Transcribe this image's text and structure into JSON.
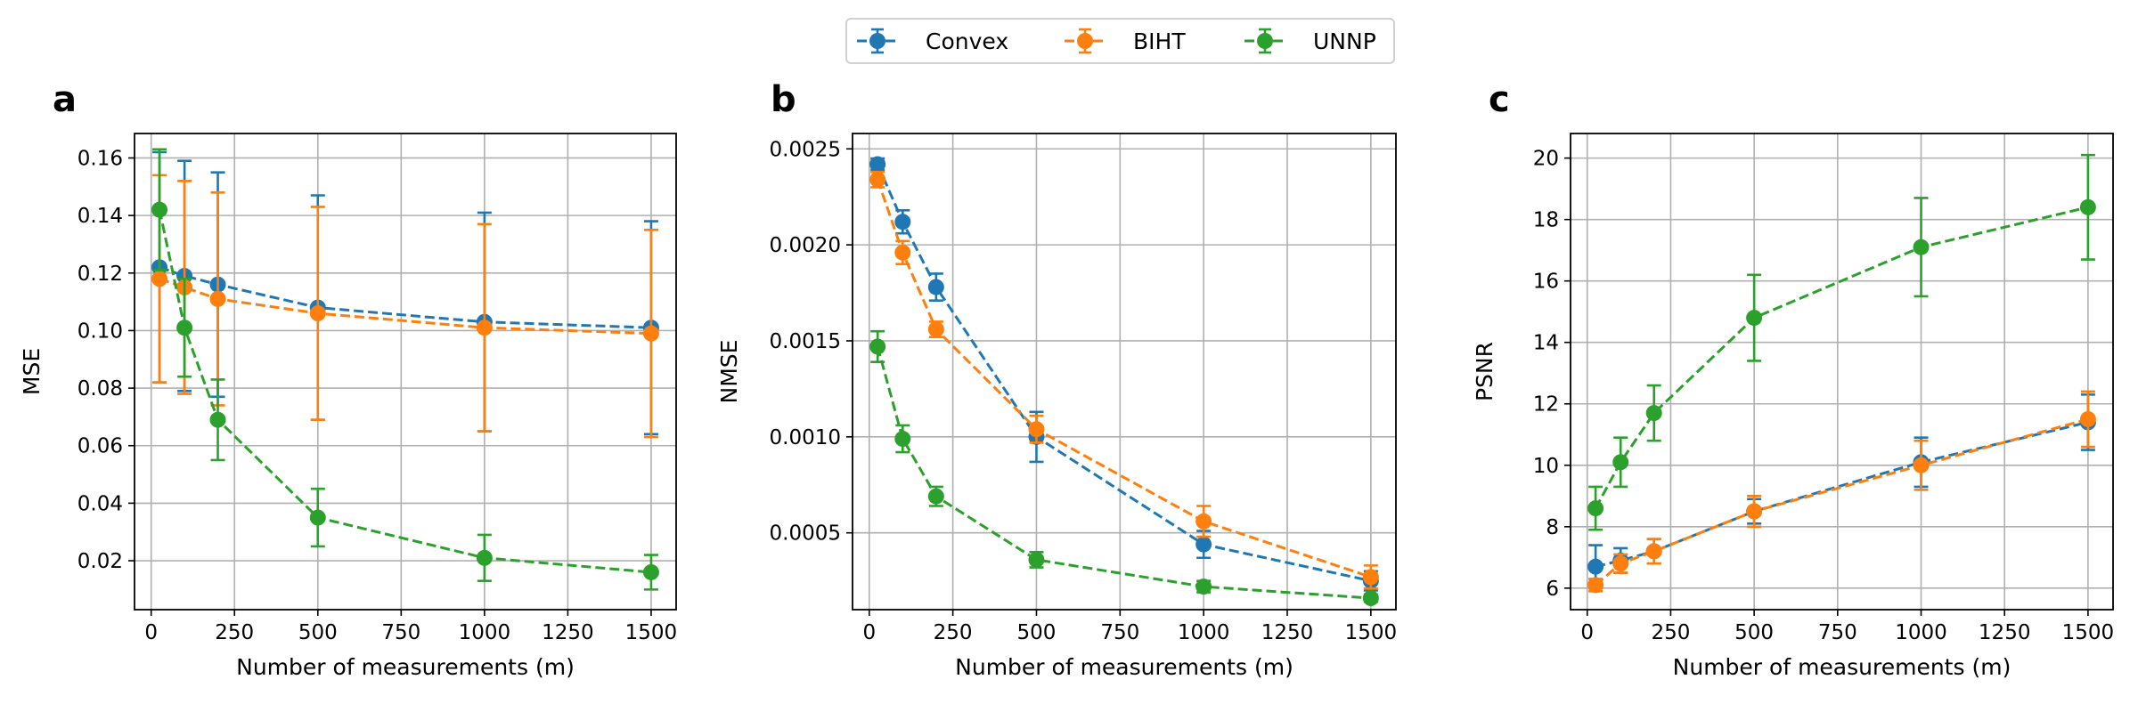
{
  "legend": {
    "entries": [
      {
        "label": "Convex",
        "color": "#1f77b4"
      },
      {
        "label": "BIHT",
        "color": "#ff7f0e"
      },
      {
        "label": "UNNP",
        "color": "#2ca02c"
      }
    ],
    "placement": "top-center"
  },
  "chart_data": [
    {
      "type": "line",
      "panel_label": "a",
      "xlabel": "Number of measurements (m)",
      "ylabel": "MSE",
      "grid": true,
      "x": [
        25,
        100,
        200,
        500,
        1000,
        1500
      ],
      "xlim": [
        -50,
        1575
      ],
      "ylim": [
        0.003,
        0.1685
      ],
      "xticks": [
        0,
        250,
        500,
        750,
        1000,
        1250,
        1500
      ],
      "yticks": [
        0.02,
        0.04,
        0.06,
        0.08,
        0.1,
        0.12,
        0.14,
        0.16
      ],
      "ytick_decimals": 2,
      "series": [
        {
          "name": "Convex",
          "color": "#1f77b4",
          "values": [
            0.122,
            0.119,
            0.116,
            0.108,
            0.103,
            0.101
          ],
          "errors": [
            0.04,
            0.04,
            0.039,
            0.039,
            0.038,
            0.037
          ]
        },
        {
          "name": "BIHT",
          "color": "#ff7f0e",
          "values": [
            0.118,
            0.115,
            0.111,
            0.106,
            0.101,
            0.099
          ],
          "errors": [
            0.036,
            0.037,
            0.037,
            0.037,
            0.036,
            0.036
          ]
        },
        {
          "name": "UNNP",
          "color": "#2ca02c",
          "values": [
            0.142,
            0.101,
            0.069,
            0.035,
            0.021,
            0.016
          ],
          "errors": [
            0.021,
            0.017,
            0.014,
            0.01,
            0.008,
            0.006
          ]
        }
      ]
    },
    {
      "type": "line",
      "panel_label": "b",
      "xlabel": "Number of measurements (m)",
      "ylabel": "NMSE",
      "grid": true,
      "x": [
        25,
        100,
        200,
        500,
        1000,
        1500
      ],
      "xlim": [
        -50,
        1575
      ],
      "ylim": [
        0.0001,
        0.00258
      ],
      "xticks": [
        0,
        250,
        500,
        750,
        1000,
        1250,
        1500
      ],
      "yticks": [
        0.0005,
        0.001,
        0.0015,
        0.002,
        0.0025
      ],
      "ytick_decimals": 4,
      "series": [
        {
          "name": "Convex",
          "color": "#1f77b4",
          "values": [
            0.00242,
            0.00212,
            0.00178,
            0.001,
            0.00044,
            0.00025
          ],
          "errors": [
            3e-05,
            6e-05,
            7e-05,
            0.00013,
            7e-05,
            5e-05
          ]
        },
        {
          "name": "BIHT",
          "color": "#ff7f0e",
          "values": [
            0.00234,
            0.00196,
            0.00156,
            0.00104,
            0.00056,
            0.00027
          ],
          "errors": [
            4e-05,
            6e-05,
            4e-05,
            7e-05,
            8e-05,
            6e-05
          ]
        },
        {
          "name": "UNNP",
          "color": "#2ca02c",
          "values": [
            0.00147,
            0.00099,
            0.00069,
            0.00036,
            0.00022,
            0.00016
          ],
          "errors": [
            8e-05,
            7e-05,
            5e-05,
            4e-05,
            3e-05,
            2e-05
          ]
        }
      ]
    },
    {
      "type": "line",
      "panel_label": "c",
      "xlabel": "Number of measurements (m)",
      "ylabel": "PSNR",
      "grid": true,
      "x": [
        25,
        100,
        200,
        500,
        1000,
        1500
      ],
      "xlim": [
        -50,
        1575
      ],
      "ylim": [
        5.3,
        20.8
      ],
      "xticks": [
        0,
        250,
        500,
        750,
        1000,
        1250,
        1500
      ],
      "yticks": [
        6,
        8,
        10,
        12,
        14,
        16,
        18,
        20
      ],
      "ytick_decimals": 0,
      "series": [
        {
          "name": "Convex",
          "color": "#1f77b4",
          "values": [
            6.7,
            6.9,
            7.2,
            8.5,
            10.1,
            11.4
          ],
          "errors": [
            0.7,
            0.4,
            0.4,
            0.4,
            0.8,
            0.9
          ]
        },
        {
          "name": "BIHT",
          "color": "#ff7f0e",
          "values": [
            6.1,
            6.8,
            7.2,
            8.5,
            10.0,
            11.5
          ],
          "errors": [
            0.2,
            0.3,
            0.4,
            0.5,
            0.8,
            0.9
          ]
        },
        {
          "name": "UNNP",
          "color": "#2ca02c",
          "values": [
            8.6,
            10.1,
            11.7,
            14.8,
            17.1,
            18.4
          ],
          "errors": [
            0.7,
            0.8,
            0.9,
            1.4,
            1.6,
            1.7
          ]
        }
      ]
    }
  ]
}
